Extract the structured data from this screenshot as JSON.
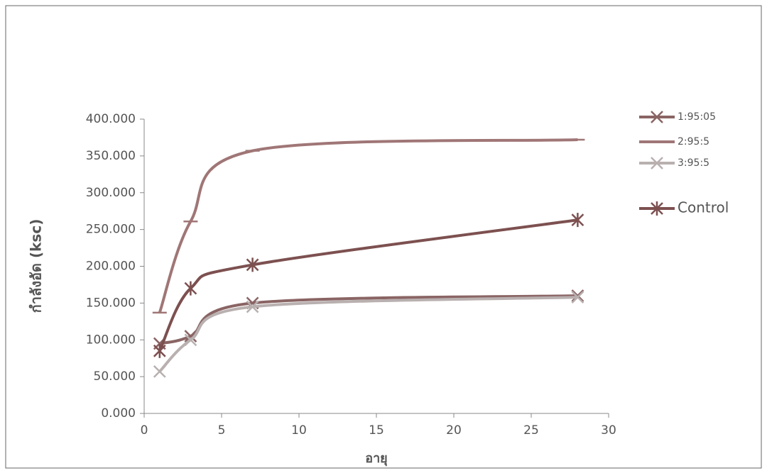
{
  "chart_data": {
    "type": "line",
    "x_label": "อายุ",
    "y_label": "กำลังอัด (ksc)",
    "x": [
      1,
      3,
      7,
      28
    ],
    "series": [
      {
        "name": "1:95:05",
        "color": "#8a6464",
        "marker": "x",
        "values": [
          95,
          105,
          150,
          160
        ]
      },
      {
        "name": "2:95:5",
        "color": "#a07676",
        "marker": "dash",
        "values": [
          137,
          261,
          357,
          372
        ]
      },
      {
        "name": "3:95:5",
        "color": "#b9b0b0",
        "marker": "x",
        "values": [
          57,
          100,
          145,
          158
        ]
      },
      {
        "name": "Control",
        "color": "#7d5050",
        "marker": "star",
        "values": [
          85,
          170,
          202,
          263
        ]
      }
    ],
    "xlim": [
      0,
      30
    ],
    "xticks": [
      0,
      5,
      10,
      15,
      20,
      25,
      30
    ],
    "ylim": [
      0,
      400
    ],
    "yticks": [
      {
        "value": 0,
        "label": "0.000"
      },
      {
        "value": 50,
        "label": "50.000"
      },
      {
        "value": 100,
        "label": "100.000"
      },
      {
        "value": 150,
        "label": "150.000"
      },
      {
        "value": 200,
        "label": "200.000"
      },
      {
        "value": 250,
        "label": "250.000"
      },
      {
        "value": 300,
        "label": "300.000"
      },
      {
        "value": 350,
        "label": "350.000"
      },
      {
        "value": 400,
        "label": "400.000"
      }
    ],
    "legend": "right"
  }
}
